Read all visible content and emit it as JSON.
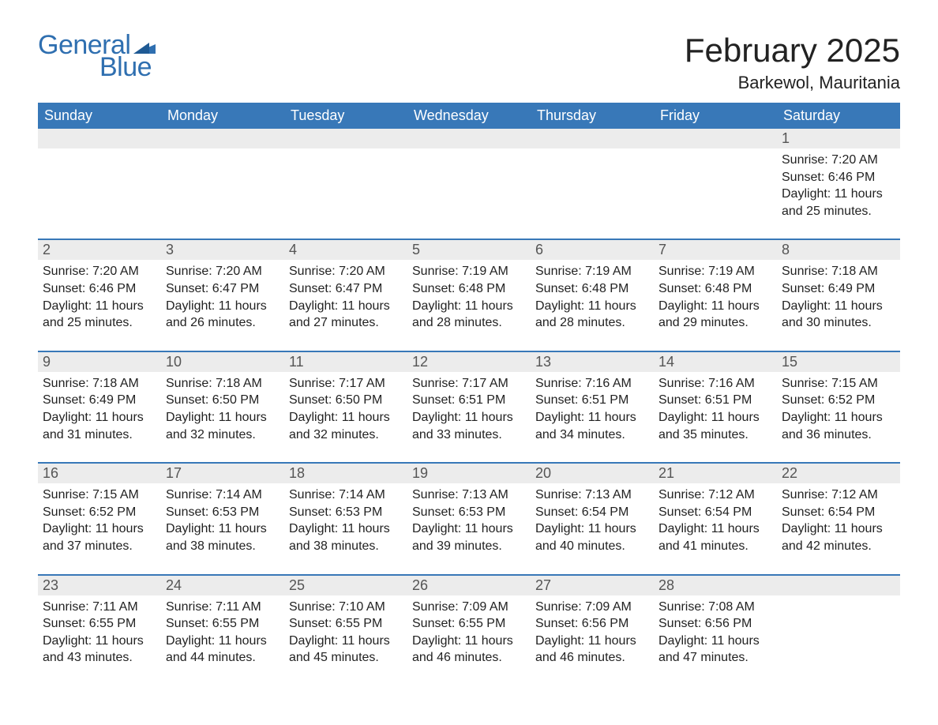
{
  "brand": {
    "line1": "General",
    "line2": "Blue",
    "flag_color": "#2f6fb0"
  },
  "title": "February 2025",
  "location": "Barkewol, Mauritania",
  "colors": {
    "header_bg": "#3878b8",
    "header_text": "#ffffff",
    "daynum_bg": "#ececec",
    "week_border": "#3878b8",
    "text": "#222222",
    "brand": "#2f6fb0"
  },
  "day_names": [
    "Sunday",
    "Monday",
    "Tuesday",
    "Wednesday",
    "Thursday",
    "Friday",
    "Saturday"
  ],
  "sunrise_label": "Sunrise: ",
  "sunset_label": "Sunset: ",
  "daylight_label": "Daylight: ",
  "weeks": [
    [
      null,
      null,
      null,
      null,
      null,
      null,
      {
        "n": "1",
        "sunrise": "7:20 AM",
        "sunset": "6:46 PM",
        "daylight": "11 hours and 25 minutes."
      }
    ],
    [
      {
        "n": "2",
        "sunrise": "7:20 AM",
        "sunset": "6:46 PM",
        "daylight": "11 hours and 25 minutes."
      },
      {
        "n": "3",
        "sunrise": "7:20 AM",
        "sunset": "6:47 PM",
        "daylight": "11 hours and 26 minutes."
      },
      {
        "n": "4",
        "sunrise": "7:20 AM",
        "sunset": "6:47 PM",
        "daylight": "11 hours and 27 minutes."
      },
      {
        "n": "5",
        "sunrise": "7:19 AM",
        "sunset": "6:48 PM",
        "daylight": "11 hours and 28 minutes."
      },
      {
        "n": "6",
        "sunrise": "7:19 AM",
        "sunset": "6:48 PM",
        "daylight": "11 hours and 28 minutes."
      },
      {
        "n": "7",
        "sunrise": "7:19 AM",
        "sunset": "6:48 PM",
        "daylight": "11 hours and 29 minutes."
      },
      {
        "n": "8",
        "sunrise": "7:18 AM",
        "sunset": "6:49 PM",
        "daylight": "11 hours and 30 minutes."
      }
    ],
    [
      {
        "n": "9",
        "sunrise": "7:18 AM",
        "sunset": "6:49 PM",
        "daylight": "11 hours and 31 minutes."
      },
      {
        "n": "10",
        "sunrise": "7:18 AM",
        "sunset": "6:50 PM",
        "daylight": "11 hours and 32 minutes."
      },
      {
        "n": "11",
        "sunrise": "7:17 AM",
        "sunset": "6:50 PM",
        "daylight": "11 hours and 32 minutes."
      },
      {
        "n": "12",
        "sunrise": "7:17 AM",
        "sunset": "6:51 PM",
        "daylight": "11 hours and 33 minutes."
      },
      {
        "n": "13",
        "sunrise": "7:16 AM",
        "sunset": "6:51 PM",
        "daylight": "11 hours and 34 minutes."
      },
      {
        "n": "14",
        "sunrise": "7:16 AM",
        "sunset": "6:51 PM",
        "daylight": "11 hours and 35 minutes."
      },
      {
        "n": "15",
        "sunrise": "7:15 AM",
        "sunset": "6:52 PM",
        "daylight": "11 hours and 36 minutes."
      }
    ],
    [
      {
        "n": "16",
        "sunrise": "7:15 AM",
        "sunset": "6:52 PM",
        "daylight": "11 hours and 37 minutes."
      },
      {
        "n": "17",
        "sunrise": "7:14 AM",
        "sunset": "6:53 PM",
        "daylight": "11 hours and 38 minutes."
      },
      {
        "n": "18",
        "sunrise": "7:14 AM",
        "sunset": "6:53 PM",
        "daylight": "11 hours and 38 minutes."
      },
      {
        "n": "19",
        "sunrise": "7:13 AM",
        "sunset": "6:53 PM",
        "daylight": "11 hours and 39 minutes."
      },
      {
        "n": "20",
        "sunrise": "7:13 AM",
        "sunset": "6:54 PM",
        "daylight": "11 hours and 40 minutes."
      },
      {
        "n": "21",
        "sunrise": "7:12 AM",
        "sunset": "6:54 PM",
        "daylight": "11 hours and 41 minutes."
      },
      {
        "n": "22",
        "sunrise": "7:12 AM",
        "sunset": "6:54 PM",
        "daylight": "11 hours and 42 minutes."
      }
    ],
    [
      {
        "n": "23",
        "sunrise": "7:11 AM",
        "sunset": "6:55 PM",
        "daylight": "11 hours and 43 minutes."
      },
      {
        "n": "24",
        "sunrise": "7:11 AM",
        "sunset": "6:55 PM",
        "daylight": "11 hours and 44 minutes."
      },
      {
        "n": "25",
        "sunrise": "7:10 AM",
        "sunset": "6:55 PM",
        "daylight": "11 hours and 45 minutes."
      },
      {
        "n": "26",
        "sunrise": "7:09 AM",
        "sunset": "6:55 PM",
        "daylight": "11 hours and 46 minutes."
      },
      {
        "n": "27",
        "sunrise": "7:09 AM",
        "sunset": "6:56 PM",
        "daylight": "11 hours and 46 minutes."
      },
      {
        "n": "28",
        "sunrise": "7:08 AM",
        "sunset": "6:56 PM",
        "daylight": "11 hours and 47 minutes."
      },
      null
    ]
  ]
}
